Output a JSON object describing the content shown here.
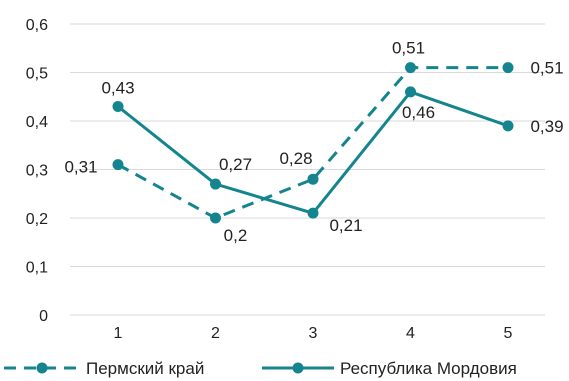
{
  "chart_data": {
    "type": "line",
    "title": "",
    "xlabel": "",
    "ylabel": "",
    "categories": [
      "1",
      "2",
      "3",
      "4",
      "5"
    ],
    "ylim": [
      0,
      0.6
    ],
    "yticks": [
      "0",
      "0,1",
      "0,2",
      "0,3",
      "0,4",
      "0,5",
      "0,6"
    ],
    "grid": true,
    "legend_position": "bottom",
    "color": "#14858F",
    "series": [
      {
        "name": "Пермский край",
        "style": "dashed",
        "values": [
          0.31,
          0.2,
          0.28,
          0.51,
          0.51
        ],
        "labels": [
          "0,31",
          "0,2",
          "0,28",
          "0,51",
          "0,51"
        ]
      },
      {
        "name": "Республика Мордовия",
        "style": "solid",
        "values": [
          0.43,
          0.27,
          0.21,
          0.46,
          0.39
        ],
        "labels": [
          "0,43",
          "0,27",
          "0,21",
          "0,46",
          "0,39"
        ]
      }
    ]
  }
}
